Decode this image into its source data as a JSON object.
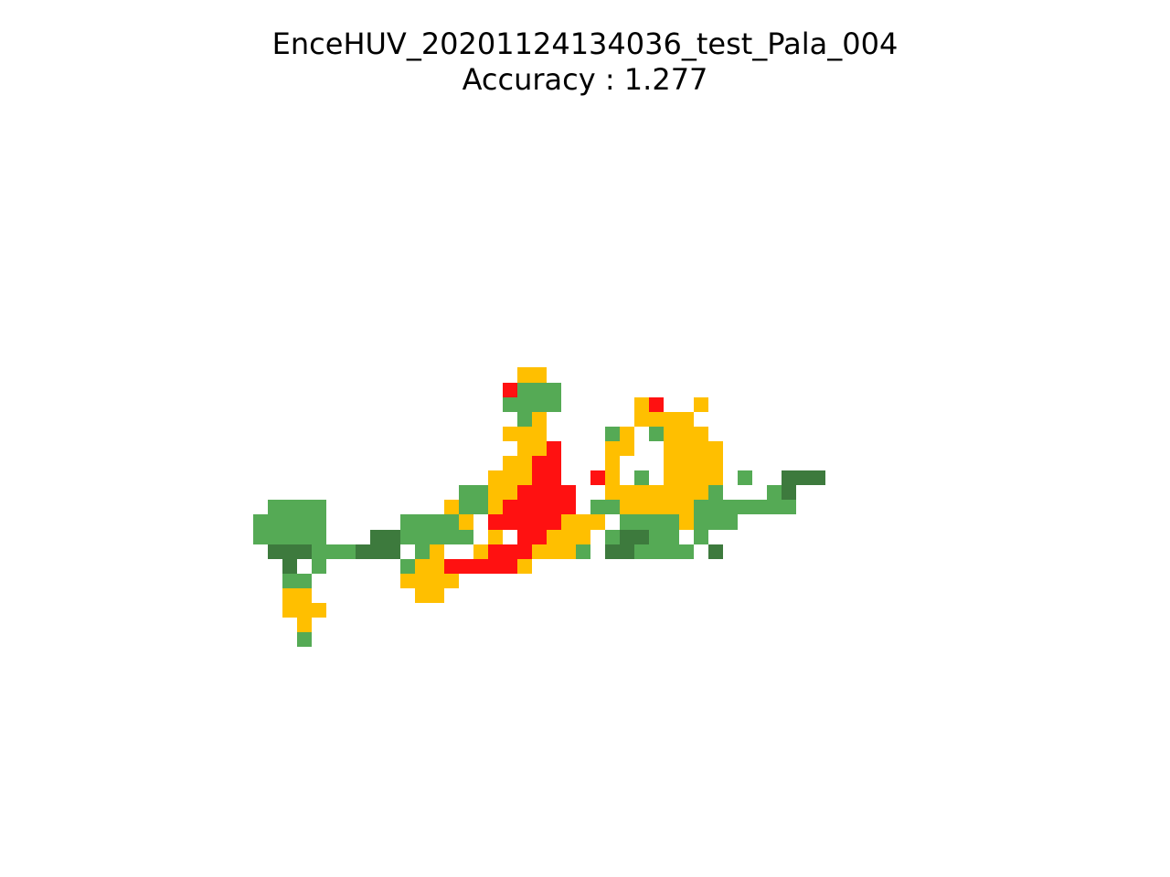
{
  "chart_data": {
    "type": "heatmap",
    "title_lines": [
      "EnceHUV_20201124134036_test_Pala_004",
      "Accuracy : 1.277"
    ],
    "xlabel": "",
    "ylabel": "",
    "axes_visible": false,
    "grid": false,
    "legend": null,
    "colormap": {
      "0": "#ffffff",
      "1": "#3d7a3d",
      "2": "#55aa55",
      "3": "#ffbf00",
      "4": "#ff1111"
    },
    "rows": [
      "..................................................",
      "..................................................",
      "..................................................",
      "..................................................",
      "..................................................",
      "..................................................",
      "..................................................",
      "..................................................",
      "..................................................",
      "..................................................",
      "..................................................",
      "..................................................",
      "..................................................",
      "..................................................",
      "..................................................",
      "..................................................",
      "..................................................",
      "..................................................",
      "..................................................",
      "..................................................",
      "..................................................",
      "..................................................",
      "..................................................",
      "..................................................",
      "...................33.............................",
      "..................4222............................",
      "..................2222.....34..3..................",
      "...................23......3333...................",
      "..................333....23.2333..................",
      "...................334...33..3333.................",
      "..................3344...3...3333.................",
      ".................33344..43.2.3333.2..111..........",
      "...............22334444..33333332...21............",
      "..2222........322344444.22333332222222............",
      ".22222.....22223.44444333.22223222................",
      ".22222...1122222.3.44333.21122.2..................",
      "..111222111.23..34443332.112222.1.................",
      "...1.2.....233444443..............................",
      "...22......3333...................................",
      "...33.......33....................................",
      "...333............................................",
      "....3.............................................",
      "....2.............................................",
      "..................................................",
      "..................................................",
      "..................................................",
      "..................................................",
      "..................................................",
      "..................................................",
      ".................................................."
    ]
  }
}
